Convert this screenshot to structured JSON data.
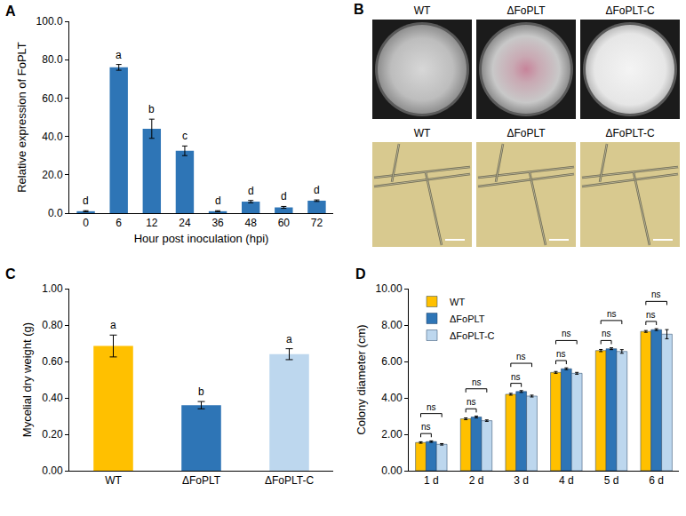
{
  "chart_data": [
    {
      "panel": "A",
      "type": "bar",
      "x_label": "Hour post inoculation (hpi)",
      "y_label": "Relative expression of FoPLT",
      "categories": [
        "0",
        "6",
        "12",
        "24",
        "36",
        "48",
        "60",
        "72"
      ],
      "values": [
        1.0,
        76.0,
        44.0,
        32.5,
        1.0,
        6.0,
        3.0,
        6.5
      ],
      "errors": [
        0.3,
        1.5,
        5.0,
        2.5,
        0.3,
        0.6,
        0.5,
        0.4
      ],
      "letters": [
        "d",
        "a",
        "b",
        "c",
        "d",
        "d",
        "d",
        "d"
      ],
      "color": "#2e75b6",
      "ylim": [
        0,
        100
      ],
      "yticks": [
        {
          "value": 0,
          "label": "0.0"
        },
        {
          "value": 20,
          "label": "20.0"
        },
        {
          "value": 40,
          "label": "40.0"
        },
        {
          "value": 60,
          "label": "60.0"
        },
        {
          "value": 80,
          "label": "80.0"
        },
        {
          "value": 100,
          "label": "100.0"
        }
      ],
      "grid": false
    },
    {
      "panel": "B",
      "type": "image",
      "plate_labels": [
        "WT",
        "ΔFoPLT",
        "ΔFoPLT-C"
      ],
      "micrograph_labels": [
        "WT",
        "ΔFoPLT",
        "ΔFoPLT-C"
      ]
    },
    {
      "panel": "C",
      "type": "bar",
      "y_label": "Mycelial dry weight (g)",
      "categories": [
        "WT",
        "ΔFoPLT",
        "ΔFoPLT-C"
      ],
      "values": [
        0.685,
        0.36,
        0.64
      ],
      "errors": [
        0.06,
        0.02,
        0.03
      ],
      "letters": [
        "a",
        "b",
        "a"
      ],
      "colors": [
        "#ffc000",
        "#2e75b6",
        "#bdd7ee"
      ],
      "ylim": [
        0,
        1
      ],
      "yticks": [
        {
          "value": 0,
          "label": "0.00"
        },
        {
          "value": 0.2,
          "label": "0.20"
        },
        {
          "value": 0.4,
          "label": "0.40"
        },
        {
          "value": 0.6,
          "label": "0.60"
        },
        {
          "value": 0.8,
          "label": "0.80"
        },
        {
          "value": 1,
          "label": "1.00"
        }
      ],
      "grid": false
    },
    {
      "panel": "D",
      "type": "bar",
      "y_label": "Colony diameter (cm)",
      "categories": [
        "1 d",
        "2 d",
        "3 d",
        "4 d",
        "5 d",
        "6 d"
      ],
      "series": [
        {
          "name": "WT",
          "color": "#ffc000",
          "values": [
            1.55,
            2.85,
            4.2,
            5.4,
            6.6,
            7.65
          ],
          "errors": [
            0.04,
            0.05,
            0.05,
            0.05,
            0.06,
            0.05
          ]
        },
        {
          "name": "ΔFoPLT",
          "color": "#2e75b6",
          "values": [
            1.6,
            2.95,
            4.35,
            5.6,
            6.7,
            7.75
          ],
          "errors": [
            0.04,
            0.05,
            0.05,
            0.05,
            0.05,
            0.05
          ]
        },
        {
          "name": "ΔFoPLT-C",
          "color": "#bdd7ee",
          "values": [
            1.45,
            2.75,
            4.1,
            5.35,
            6.55,
            7.5
          ],
          "errors": [
            0.04,
            0.04,
            0.05,
            0.05,
            0.1,
            0.25
          ]
        }
      ],
      "significance": [
        [
          "ns",
          "ns"
        ],
        [
          "ns",
          "ns"
        ],
        [
          "ns",
          "ns"
        ],
        [
          "ns",
          "ns"
        ],
        [
          "ns",
          "ns"
        ],
        [
          "ns",
          "ns"
        ]
      ],
      "ylim": [
        0,
        10
      ],
      "yticks": [
        {
          "value": 0,
          "label": "0.00"
        },
        {
          "value": 2,
          "label": "2.00"
        },
        {
          "value": 4,
          "label": "4.00"
        },
        {
          "value": 6,
          "label": "6.00"
        },
        {
          "value": 8,
          "label": "8.00"
        },
        {
          "value": 10,
          "label": "10.00"
        }
      ],
      "legend": "upper left",
      "grid": false
    }
  ]
}
